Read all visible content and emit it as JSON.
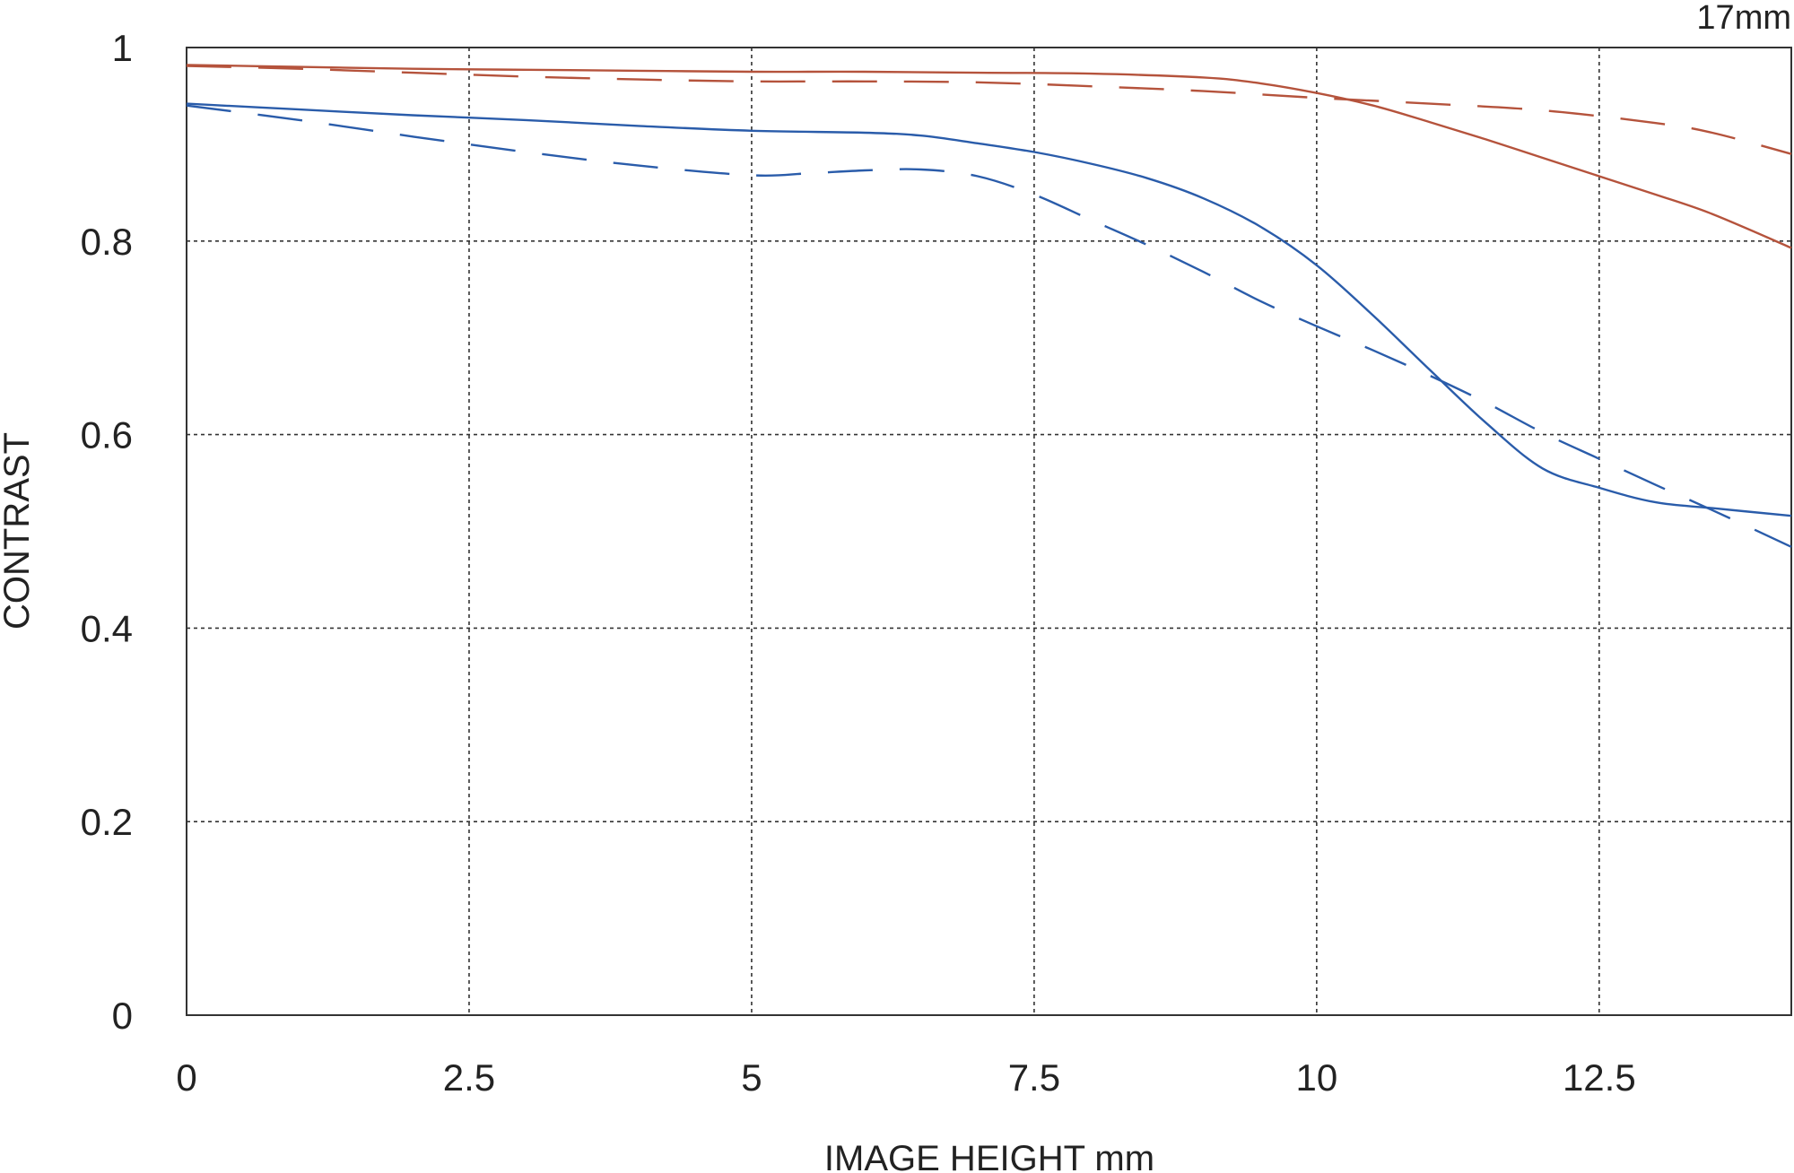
{
  "chart_data": {
    "type": "line",
    "title": "17mm",
    "xlabel": "IMAGE HEIGHT  mm",
    "ylabel": "CONTRAST",
    "xlim": [
      0,
      14.2
    ],
    "ylim": [
      0,
      1
    ],
    "x_ticks": [
      0,
      2.5,
      5,
      7.5,
      10,
      12.5
    ],
    "x_tick_labels": [
      "0",
      "2.5",
      "5",
      "7.5",
      "10",
      "12.5"
    ],
    "y_ticks": [
      0,
      0.2,
      0.4,
      0.6,
      0.8,
      1
    ],
    "y_tick_labels": [
      "0",
      "0.2",
      "0.4",
      "0.6",
      "0.8",
      "1"
    ],
    "grid": true,
    "legend": "none",
    "series": [
      {
        "color": "#b5533c",
        "dash": "solid",
        "x": [
          0,
          1,
          2,
          3,
          4,
          5,
          6,
          7,
          8,
          9,
          9.5,
          10,
          10.5,
          11,
          11.5,
          12,
          12.5,
          13,
          13.5,
          14.2
        ],
        "y": [
          0.982,
          0.98,
          0.978,
          0.977,
          0.976,
          0.975,
          0.975,
          0.974,
          0.973,
          0.969,
          0.963,
          0.953,
          0.94,
          0.923,
          0.905,
          0.886,
          0.867,
          0.848,
          0.828,
          0.793
        ]
      },
      {
        "color": "#b5533c",
        "dash": "dashed",
        "x": [
          0,
          1,
          2,
          3,
          4,
          5,
          6,
          7,
          8,
          9,
          10,
          11,
          12,
          13,
          13.5,
          14.2
        ],
        "y": [
          0.981,
          0.978,
          0.974,
          0.97,
          0.967,
          0.965,
          0.965,
          0.964,
          0.96,
          0.955,
          0.948,
          0.942,
          0.935,
          0.922,
          0.912,
          0.89
        ]
      },
      {
        "color": "#2a5caa",
        "dash": "solid",
        "x": [
          0,
          1,
          2,
          3,
          4,
          5,
          6,
          6.5,
          7,
          7.5,
          8,
          8.5,
          9,
          9.5,
          10,
          10.5,
          11,
          11.5,
          12,
          12.5,
          13,
          13.5,
          14.2
        ],
        "y": [
          0.942,
          0.936,
          0.93,
          0.925,
          0.919,
          0.914,
          0.912,
          0.909,
          0.901,
          0.892,
          0.88,
          0.865,
          0.844,
          0.815,
          0.775,
          0.723,
          0.667,
          0.612,
          0.565,
          0.545,
          0.53,
          0.524,
          0.516
        ]
      },
      {
        "color": "#2a5caa",
        "dash": "dashed",
        "x": [
          0,
          1,
          2,
          3,
          4,
          5,
          5.5,
          6,
          6.5,
          7,
          7.5,
          8,
          8.5,
          9,
          9.5,
          10,
          10.5,
          11,
          11.5,
          12,
          12.5,
          13,
          13.5,
          14.2
        ],
        "y": [
          0.94,
          0.925,
          0.908,
          0.892,
          0.878,
          0.868,
          0.87,
          0.873,
          0.874,
          0.867,
          0.848,
          0.822,
          0.796,
          0.768,
          0.738,
          0.712,
          0.687,
          0.661,
          0.633,
          0.602,
          0.575,
          0.548,
          0.522,
          0.484
        ]
      }
    ]
  }
}
